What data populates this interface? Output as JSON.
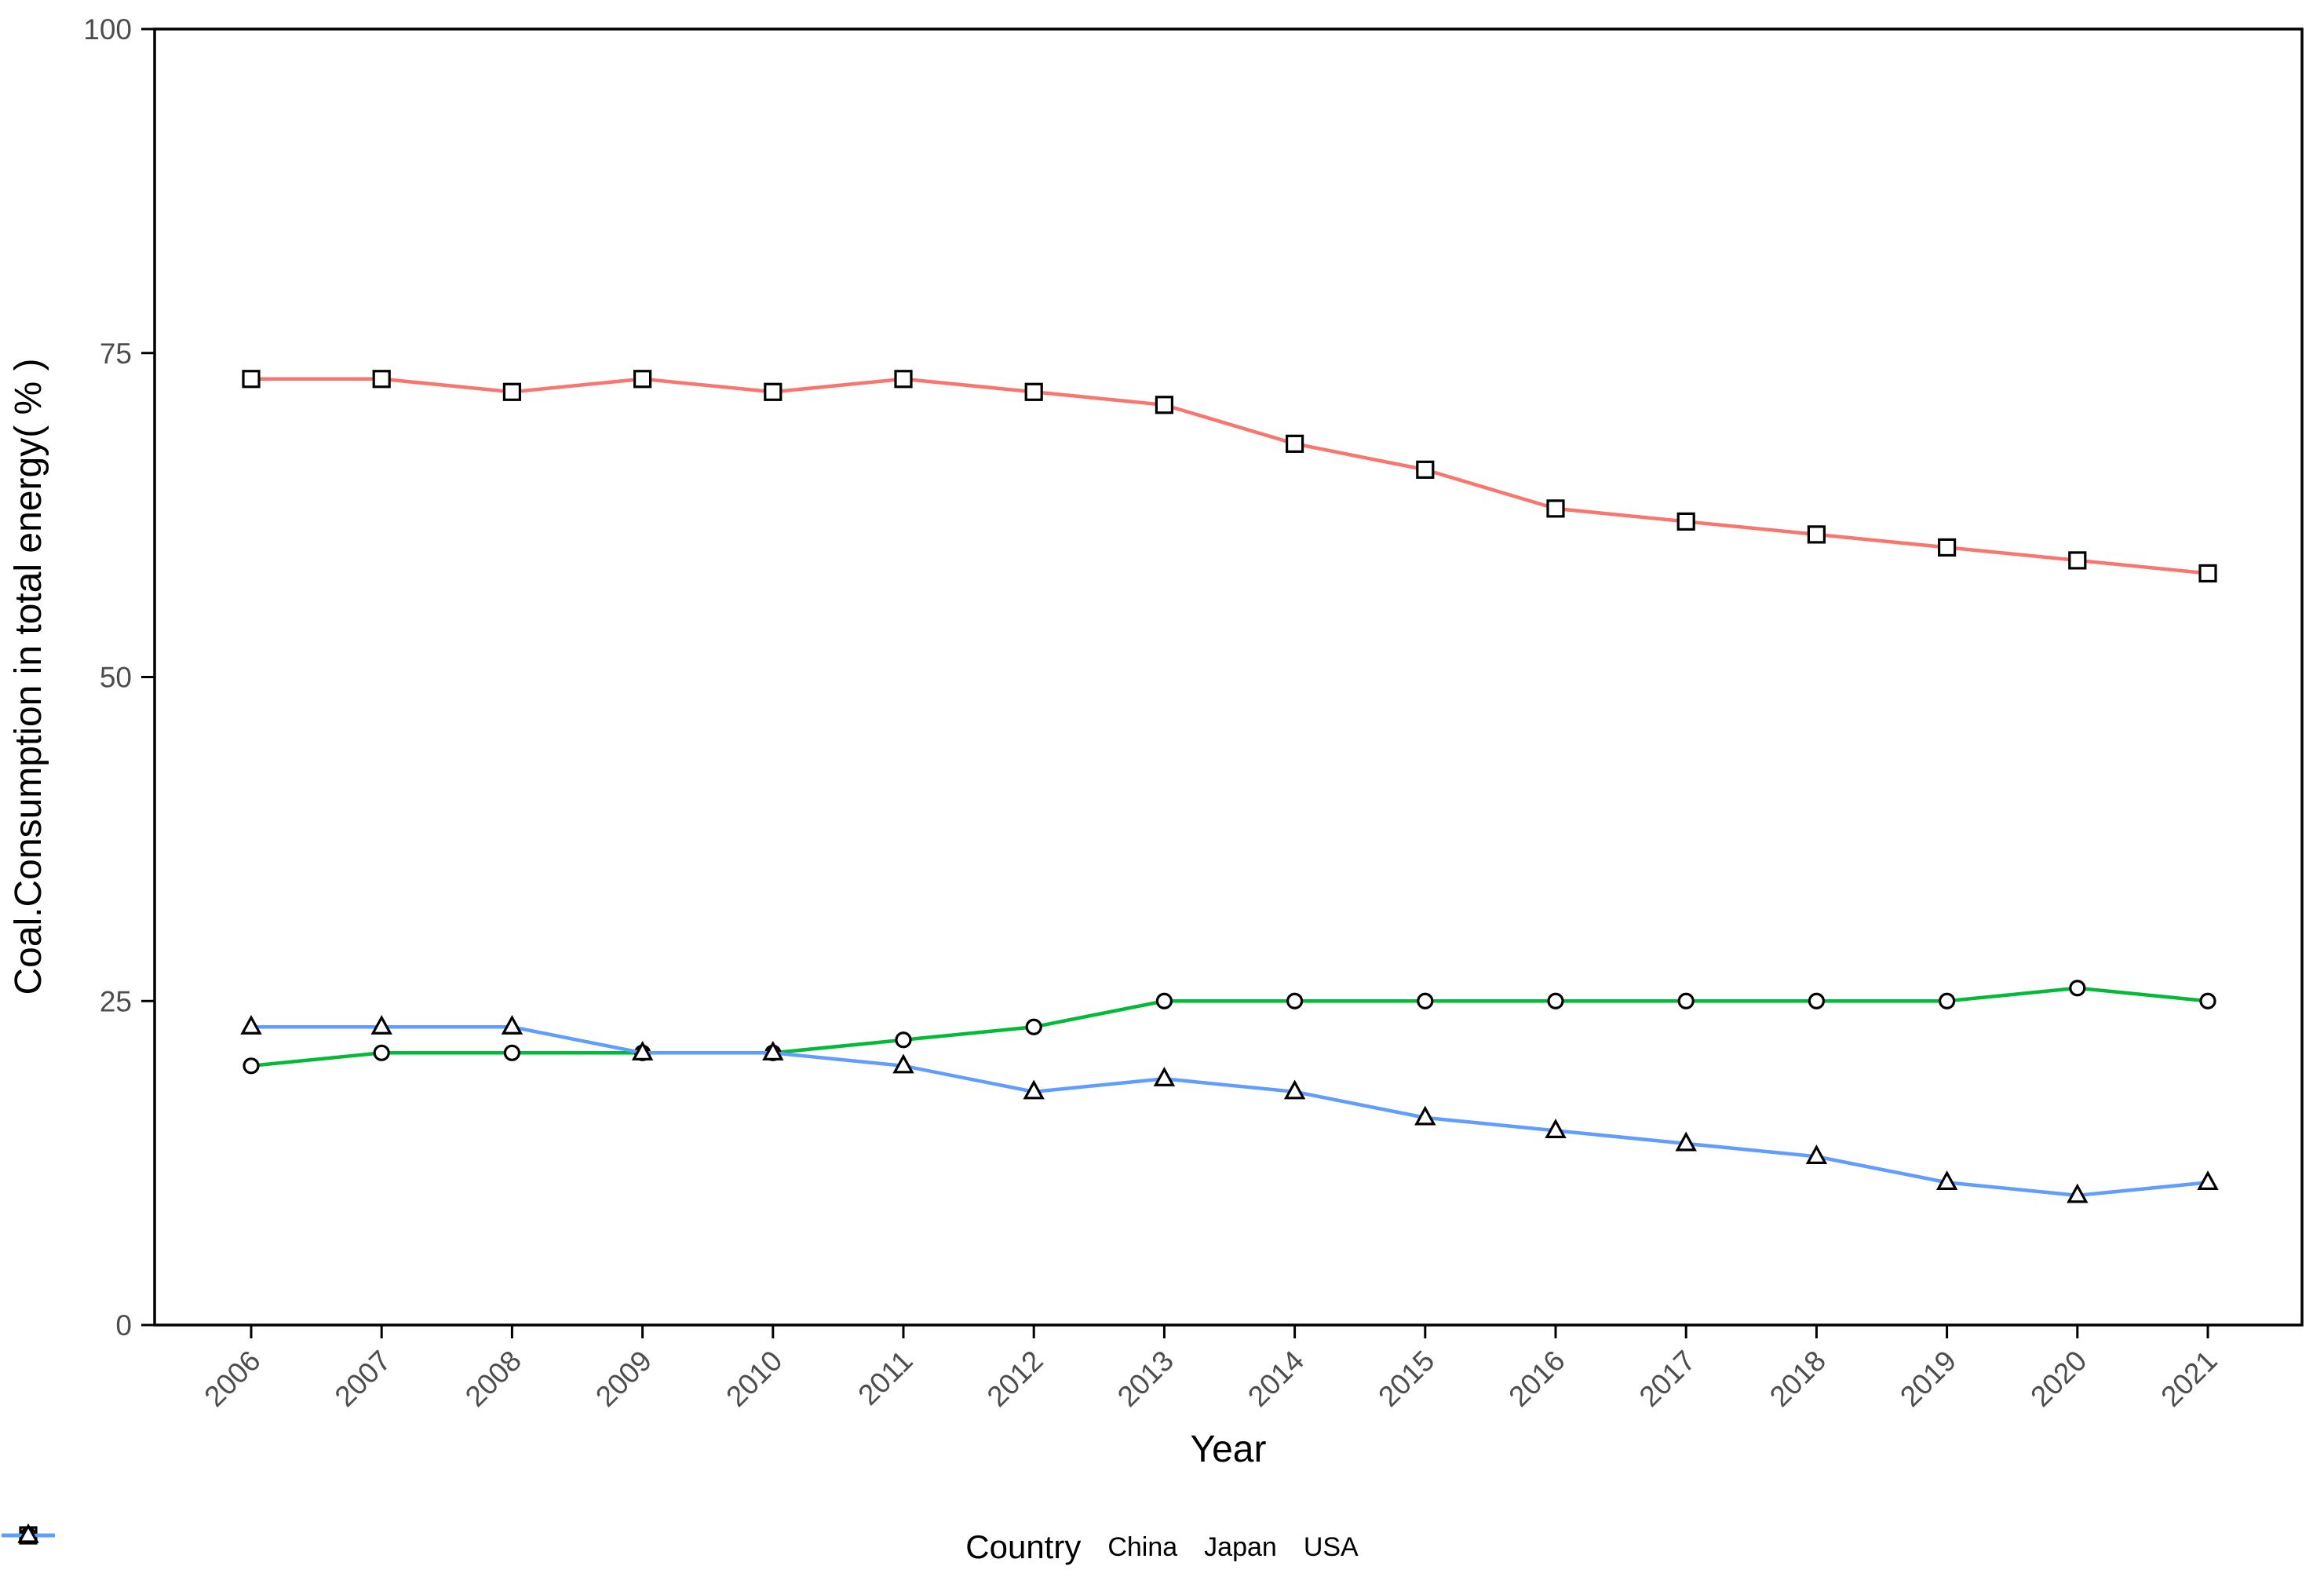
{
  "chart_data": {
    "type": "line",
    "title": "",
    "xlabel": "Year",
    "ylabel": "Coal.Consumption in total energy( % )",
    "x": [
      2006,
      2007,
      2008,
      2009,
      2010,
      2011,
      2012,
      2013,
      2014,
      2015,
      2016,
      2017,
      2018,
      2019,
      2020,
      2021
    ],
    "ylim": [
      0,
      100
    ],
    "yticks": [
      0,
      25,
      50,
      75,
      100
    ],
    "grid": false,
    "legend": {
      "title": "Country",
      "position": "bottom"
    },
    "series": [
      {
        "name": "China",
        "color": "#F8766D",
        "marker": "square",
        "marker_fill": "#FFFFFF",
        "marker_stroke": "#000000",
        "values": [
          73,
          73,
          72,
          73,
          72,
          73,
          72,
          71,
          68,
          66,
          63,
          62,
          61,
          60,
          59,
          58
        ]
      },
      {
        "name": "Japan",
        "color": "#00BA38",
        "marker": "circle",
        "marker_fill": "#FFFFFF",
        "marker_stroke": "#000000",
        "values": [
          20,
          21,
          21,
          21,
          21,
          22,
          23,
          25,
          25,
          25,
          25,
          25,
          25,
          25,
          26,
          25
        ]
      },
      {
        "name": "USA",
        "color": "#619CFF",
        "marker": "triangle",
        "marker_fill": "#FFFFFF",
        "marker_stroke": "#000000",
        "values": [
          23,
          23,
          23,
          21,
          21,
          20,
          18,
          19,
          18,
          16,
          15,
          14,
          13,
          11,
          10,
          11
        ]
      }
    ],
    "axis_text_color": "#4d4d4d",
    "axis_title_color": "#000000",
    "axis_line_color": "#000000",
    "background": "#FFFFFF"
  }
}
